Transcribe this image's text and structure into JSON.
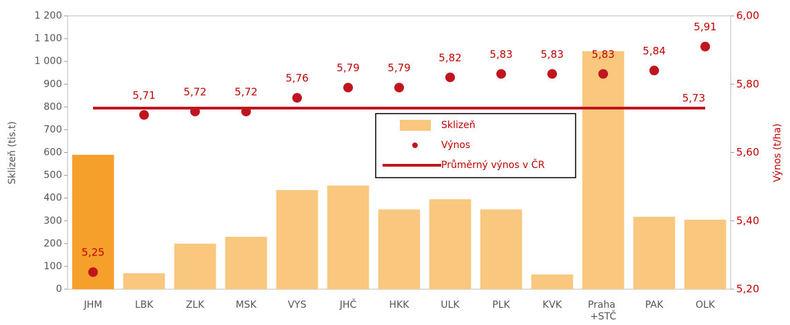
{
  "chart_data": {
    "type": "bar",
    "categories": [
      "JHM",
      "LBK",
      "ZLK",
      "MSK",
      "VYS",
      "JHČ",
      "HKK",
      "ULK",
      "PLK",
      "KVK",
      "Praha +STČ",
      "PAK",
      "OLK"
    ],
    "series": [
      {
        "name": "Sklizeň",
        "type": "bar",
        "color": "#f9c77e",
        "colors": [
          "#f5a02a",
          "#f9c77e",
          "#f9c77e",
          "#f9c77e",
          "#f9c77e",
          "#f9c77e",
          "#f9c77e",
          "#f9c77e",
          "#f9c77e",
          "#f9c77e",
          "#f9c77e",
          "#f9c77e",
          "#f9c77e"
        ],
        "values": [
          590,
          70,
          200,
          230,
          435,
          455,
          350,
          395,
          350,
          65,
          1045,
          318,
          305
        ]
      },
      {
        "name": "Výnos",
        "type": "scatter",
        "axis": "y2",
        "color": "#c0141e",
        "values": [
          5.25,
          5.71,
          5.72,
          5.72,
          5.76,
          5.79,
          5.79,
          5.82,
          5.83,
          5.83,
          5.83,
          5.84,
          5.91
        ],
        "value_labels": [
          "5,25",
          "5,71",
          "5,72",
          "5,72",
          "5,76",
          "5,79",
          "5,79",
          "5,82",
          "5,83",
          "5,83",
          "5,83",
          "5,84",
          "5,91"
        ]
      },
      {
        "name": "Průměrný výnos v ČR",
        "type": "hline",
        "axis": "y2",
        "color": "#c0141e",
        "value": 5.73,
        "value_label": "5,73"
      }
    ],
    "ylabel": "Sklizeň (tis.t)",
    "y2label": "Výnos (t/ha)",
    "ylim": [
      0,
      1200
    ],
    "yticks": [
      0,
      100,
      200,
      300,
      400,
      500,
      600,
      700,
      800,
      900,
      {
        "value": 1000,
        "label": "1 000"
      },
      {
        "value": 1100,
        "label": "1 100"
      },
      {
        "value": 1200,
        "label": "1 200"
      }
    ],
    "y2lim": [
      5.2,
      6.0
    ],
    "y2ticks": [
      {
        "value": 5.2,
        "label": "5,20"
      },
      {
        "value": 5.4,
        "label": "5,40"
      },
      {
        "value": 5.6,
        "label": "5,60"
      },
      {
        "value": 5.8,
        "label": "5,80"
      },
      {
        "value": 6.0,
        "label": "6,00"
      }
    ],
    "legend": "center"
  }
}
